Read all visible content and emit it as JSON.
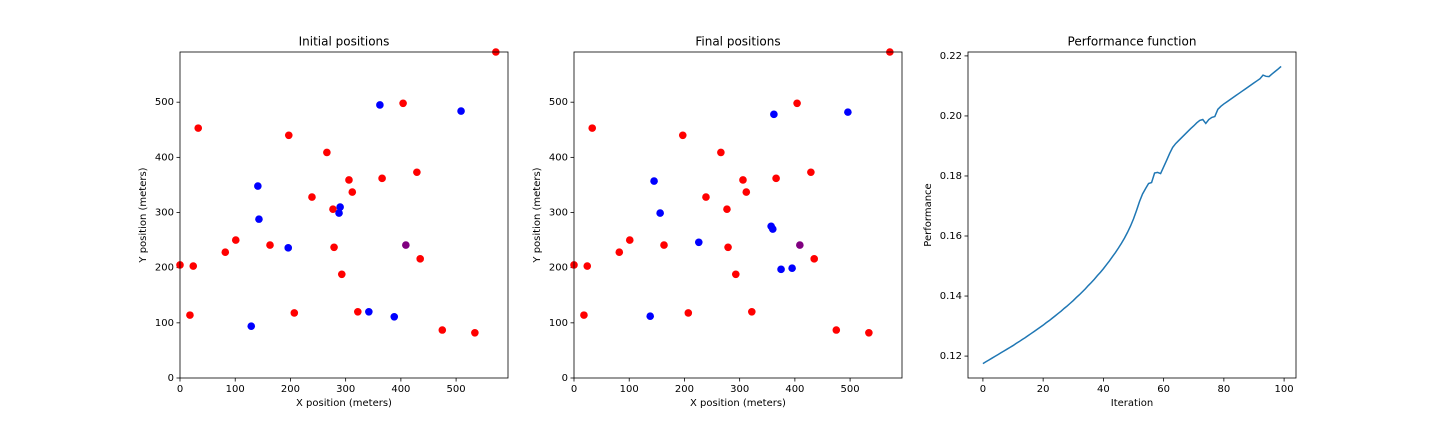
{
  "chart_data": [
    {
      "type": "scatter",
      "title": "Initial positions",
      "xlabel": "X position (meters)",
      "ylabel": "Y position (meters)",
      "xlim": [
        0,
        594
      ],
      "ylim": [
        0,
        591
      ],
      "xticks": [
        0,
        100,
        200,
        300,
        400,
        500
      ],
      "yticks": [
        0,
        100,
        200,
        300,
        400,
        500
      ],
      "series": [
        {
          "color": "#ff0000",
          "x": [
            0,
            24,
            18,
            33,
            82,
            101,
            163,
            197,
            207,
            239,
            266,
            277,
            279,
            293,
            306,
            312,
            322,
            366,
            404,
            429,
            435,
            475,
            534,
            572
          ],
          "values": [
            205,
            203,
            114,
            453,
            228,
            250,
            241,
            440,
            118,
            328,
            409,
            306,
            237,
            188,
            359,
            337,
            120,
            362,
            498,
            373,
            216,
            87,
            82,
            591
          ]
        },
        {
          "color": "#0000ff",
          "x": [
            141,
            143,
            196,
            129,
            290,
            288,
            342,
            362,
            388,
            509
          ],
          "values": [
            348,
            288,
            236,
            94,
            310,
            299,
            120,
            495,
            111,
            484
          ]
        },
        {
          "color": "#800080",
          "x": [
            409
          ],
          "values": [
            241
          ]
        }
      ]
    },
    {
      "type": "scatter",
      "title": "Final positions",
      "xlabel": "X position (meters)",
      "ylabel": "Y position (meters)",
      "xlim": [
        0,
        594
      ],
      "ylim": [
        0,
        591
      ],
      "xticks": [
        0,
        100,
        200,
        300,
        400,
        500
      ],
      "yticks": [
        0,
        100,
        200,
        300,
        400,
        500
      ],
      "series": [
        {
          "color": "#ff0000",
          "x": [
            0,
            24,
            18,
            33,
            82,
            101,
            163,
            197,
            207,
            239,
            266,
            277,
            279,
            293,
            306,
            312,
            322,
            366,
            404,
            429,
            435,
            475,
            534,
            572
          ],
          "values": [
            205,
            203,
            114,
            453,
            228,
            250,
            241,
            440,
            118,
            328,
            409,
            306,
            237,
            188,
            359,
            337,
            120,
            362,
            498,
            373,
            216,
            87,
            82,
            591
          ]
        },
        {
          "color": "#0000ff",
          "x": [
            145,
            156,
            226,
            138,
            362,
            357,
            360,
            375,
            395,
            496
          ],
          "values": [
            357,
            299,
            246,
            112,
            478,
            275,
            270,
            197,
            199,
            482
          ]
        },
        {
          "color": "#800080",
          "x": [
            409
          ],
          "values": [
            241
          ]
        }
      ]
    },
    {
      "type": "line",
      "title": "Performance function",
      "xlabel": "Iteration",
      "ylabel": "Performance",
      "xlim": [
        -4.95,
        103.95
      ],
      "ylim": [
        0.1127,
        0.2213
      ],
      "xticks": [
        0,
        20,
        40,
        60,
        80,
        100
      ],
      "yticks": [
        0.12,
        0.14,
        0.16,
        0.18,
        {
          "value": 0.2,
          "label": "0.20"
        },
        0.22
      ],
      "series": [
        {
          "color": "#1f77b4",
          "x": [
            0,
            1,
            2,
            3,
            4,
            5,
            6,
            7,
            8,
            9,
            10,
            11,
            12,
            13,
            14,
            15,
            16,
            17,
            18,
            19,
            20,
            21,
            22,
            23,
            24,
            25,
            26,
            27,
            28,
            29,
            30,
            31,
            32,
            33,
            34,
            35,
            36,
            37,
            38,
            39,
            40,
            41,
            42,
            43,
            44,
            45,
            46,
            47,
            48,
            49,
            50,
            51,
            52,
            53,
            54,
            55,
            56,
            57,
            58,
            59,
            60,
            61,
            62,
            63,
            64,
            65,
            66,
            67,
            68,
            69,
            70,
            71,
            72,
            73,
            74,
            75,
            76,
            77,
            78,
            79,
            80,
            81,
            82,
            83,
            84,
            85,
            86,
            87,
            88,
            89,
            90,
            91,
            92,
            93,
            94,
            95,
            96,
            97,
            98,
            99
          ],
          "values": [
            0.1175,
            0.1181,
            0.1187,
            0.1193,
            0.1199,
            0.1205,
            0.1211,
            0.1217,
            0.1223,
            0.1229,
            0.1235,
            0.1242,
            0.1248,
            0.1255,
            0.1261,
            0.1268,
            0.1275,
            0.1282,
            0.1289,
            0.1296,
            0.1303,
            0.1311,
            0.1318,
            0.1326,
            0.1334,
            0.1342,
            0.135,
            0.1359,
            0.1367,
            0.1376,
            0.1385,
            0.1395,
            0.1404,
            0.1414,
            0.1424,
            0.1435,
            0.1445,
            0.1456,
            0.1468,
            0.1479,
            0.1491,
            0.1504,
            0.1517,
            0.1531,
            0.1545,
            0.156,
            0.1576,
            0.1593,
            0.1612,
            0.1633,
            0.1657,
            0.1685,
            0.1715,
            0.174,
            0.1758,
            0.1775,
            0.1778,
            0.181,
            0.1812,
            0.1808,
            0.183,
            0.1852,
            0.1875,
            0.1895,
            0.1908,
            0.1918,
            0.1928,
            0.1938,
            0.1948,
            0.1958,
            0.1967,
            0.1977,
            0.1985,
            0.1988,
            0.1975,
            0.1988,
            0.1995,
            0.1998,
            0.2022,
            0.2032,
            0.204,
            0.2047,
            0.2054,
            0.2061,
            0.2068,
            0.2075,
            0.2082,
            0.2089,
            0.2096,
            0.2103,
            0.211,
            0.2117,
            0.2124,
            0.2136,
            0.2132,
            0.2131,
            0.214,
            0.2148,
            0.2156,
            0.2165
          ]
        }
      ]
    }
  ]
}
